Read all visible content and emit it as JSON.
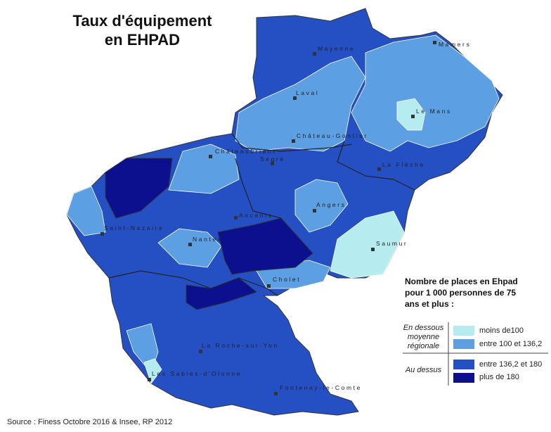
{
  "title": "Taux d'équipement en EHPAD",
  "colors": {
    "moins_100": "#b4ecef",
    "100_136": "#5c9fe2",
    "136_180": "#2450c4",
    "plus_180": "#0a108e",
    "border": "#333333"
  },
  "cities": [
    {
      "name": "Mayenne"
    },
    {
      "name": "Mamers"
    },
    {
      "name": "Laval"
    },
    {
      "name": "Le Mans"
    },
    {
      "name": "Château-Gontier"
    },
    {
      "name": "Châteaubriant"
    },
    {
      "name": "Segré"
    },
    {
      "name": "La Flèche"
    },
    {
      "name": "Angers"
    },
    {
      "name": "Ancenis"
    },
    {
      "name": "Saint-Nazaire"
    },
    {
      "name": "Nantes"
    },
    {
      "name": "Saumur"
    },
    {
      "name": "Cholet"
    },
    {
      "name": "La Roche-sur-Yon"
    },
    {
      "name": "Les Sables-d'Olonne"
    },
    {
      "name": "Fontenay-le-Comte"
    }
  ],
  "legend": {
    "title": "Nombre de places en Ehpad pour 1 000 personnes de 75 ans et plus :",
    "below_label": "En dessous moyenne régionale",
    "above_label": "Au dessus",
    "classes": [
      {
        "label": "moins de100",
        "color": "#b4ecef"
      },
      {
        "label": "entre 100 et 136,2",
        "color": "#5c9fe2"
      },
      {
        "label": "entre 136,2 et 180",
        "color": "#2450c4"
      },
      {
        "label": "plus de 180",
        "color": "#0a108e"
      }
    ]
  },
  "source": "Source : Finess Octobre 2016 & Insee, RP 2012"
}
